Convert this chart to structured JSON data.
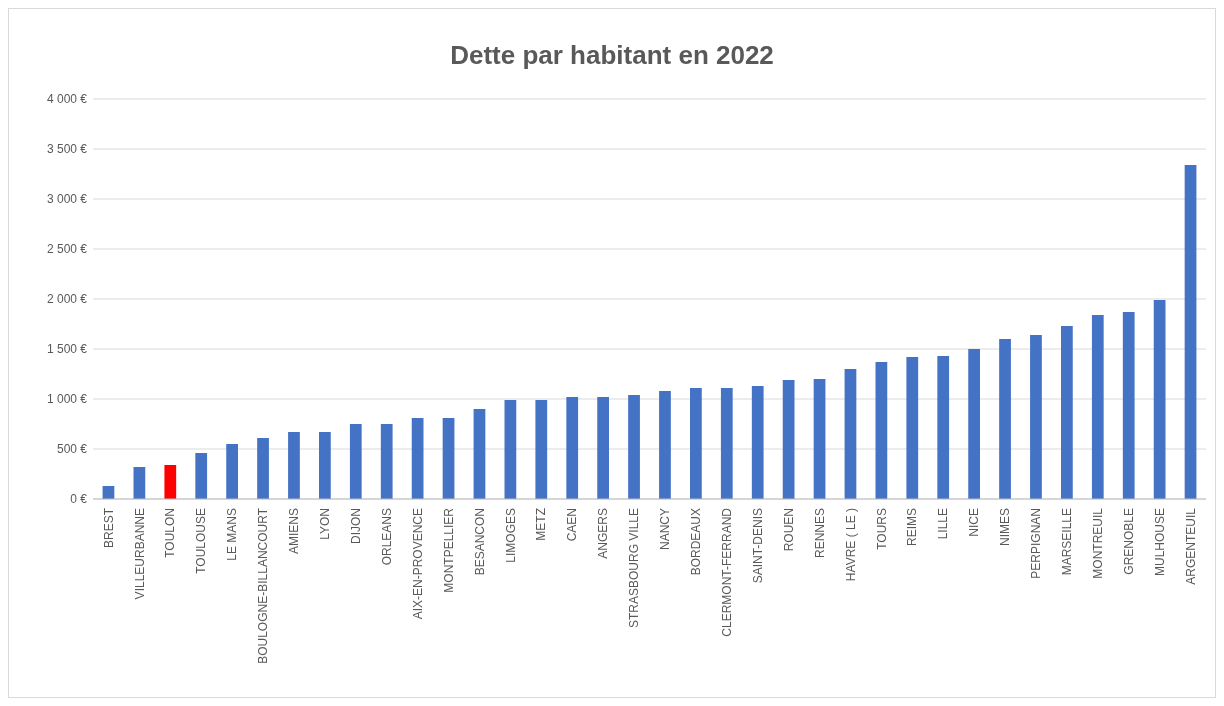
{
  "chart_data": {
    "type": "bar",
    "title": "Dette par habitant en 2022",
    "categories": [
      "BREST",
      "VILLEURBANNE",
      "TOULON",
      "TOULOUSE",
      "LE MANS",
      "BOULOGNE-BILLANCOURT",
      "AMIENS",
      "LYON",
      "DIJON",
      "ORLEANS",
      "AIX-EN-PROVENCE",
      "MONTPELLIER",
      "BESANCON",
      "LIMOGES",
      "METZ",
      "CAEN",
      "ANGERS",
      "STRASBOURG VILLE",
      "NANCY",
      "BORDEAUX",
      "CLERMONT-FERRAND",
      "SAINT-DENIS",
      "ROUEN",
      "RENNES",
      "HAVRE ( LE )",
      "TOURS",
      "REIMS",
      "LILLE",
      "NICE",
      "NIMES",
      "PERPIGNAN",
      "MARSEILLE",
      "MONTREUIL",
      "GRENOBLE",
      "MULHOUSE",
      "ARGENTEUIL"
    ],
    "values": [
      130,
      320,
      340,
      460,
      550,
      610,
      670,
      670,
      750,
      750,
      810,
      810,
      900,
      990,
      990,
      1020,
      1020,
      1040,
      1080,
      1110,
      1110,
      1130,
      1190,
      1200,
      1300,
      1370,
      1420,
      1430,
      1500,
      1600,
      1640,
      1730,
      1840,
      1870,
      1990,
      3340
    ],
    "colors": [
      "#4472c4",
      "#4472c4",
      "#ff0000",
      "#4472c4",
      "#4472c4",
      "#4472c4",
      "#4472c4",
      "#4472c4",
      "#4472c4",
      "#4472c4",
      "#4472c4",
      "#4472c4",
      "#4472c4",
      "#4472c4",
      "#4472c4",
      "#4472c4",
      "#4472c4",
      "#4472c4",
      "#4472c4",
      "#4472c4",
      "#4472c4",
      "#4472c4",
      "#4472c4",
      "#4472c4",
      "#4472c4",
      "#4472c4",
      "#4472c4",
      "#4472c4",
      "#4472c4",
      "#4472c4",
      "#4472c4",
      "#4472c4",
      "#4472c4",
      "#4472c4",
      "#4472c4",
      "#4472c4"
    ],
    "ylim": [
      0,
      4000
    ],
    "yticks": [
      {
        "value": 0,
        "label": "0 €"
      },
      {
        "value": 500,
        "label": "500 €"
      },
      {
        "value": 1000,
        "label": "1 000 €"
      },
      {
        "value": 1500,
        "label": "1 500 €"
      },
      {
        "value": 2000,
        "label": "2 000 €"
      },
      {
        "value": 2500,
        "label": "2 500 €"
      },
      {
        "value": 3000,
        "label": "3 000 €"
      },
      {
        "value": 3500,
        "label": "3 500 €"
      },
      {
        "value": 4000,
        "label": "4 000 €"
      }
    ],
    "grid": "y"
  }
}
